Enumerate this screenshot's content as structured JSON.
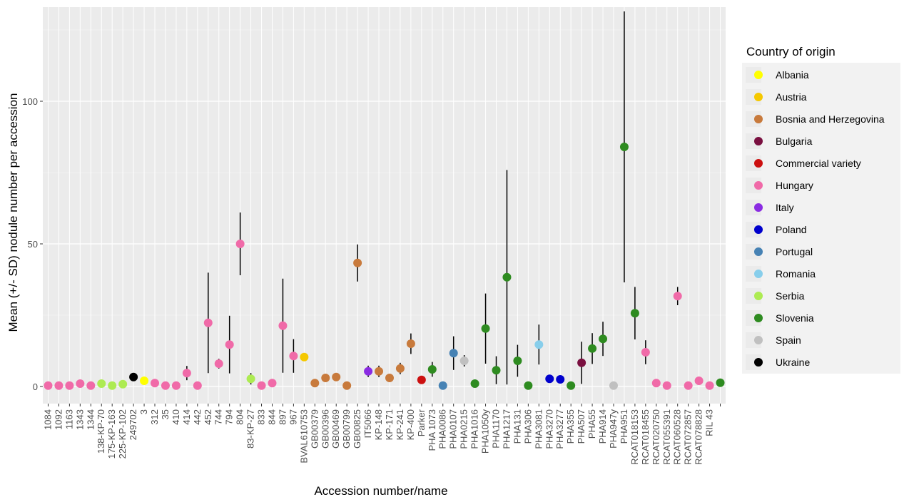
{
  "chart_data": {
    "type": "scatter",
    "title": "",
    "xlabel": "Accession number/name",
    "ylabel": "Mean (+/- SD) nodule number per accession",
    "ylim": [
      -6,
      133
    ],
    "yticks": [
      0,
      50,
      100
    ],
    "grid": true,
    "legend_position": "right",
    "legend_title": "Country of origin",
    "legend": [
      {
        "name": "Albania",
        "color": "#ffff00"
      },
      {
        "name": "Austria",
        "color": "#f5c800"
      },
      {
        "name": "Bosnia and Herzegovina",
        "color": "#c87a3c"
      },
      {
        "name": "Bulgaria",
        "color": "#7a1040"
      },
      {
        "name": "Commercial variety",
        "color": "#cc1010"
      },
      {
        "name": "Hungary",
        "color": "#f06aa8"
      },
      {
        "name": "Italy",
        "color": "#8a2be2"
      },
      {
        "name": "Poland",
        "color": "#0000cd"
      },
      {
        "name": "Portugal",
        "color": "#4682b4"
      },
      {
        "name": "Romania",
        "color": "#87ceeb"
      },
      {
        "name": "Serbia",
        "color": "#adeb52"
      },
      {
        "name": "Slovenia",
        "color": "#2e8b20"
      },
      {
        "name": "Spain",
        "color": "#c0c0c0"
      },
      {
        "name": "Ukraine",
        "color": "#000000"
      }
    ],
    "points": [
      {
        "x": "1084",
        "y": 0.3,
        "sd": 0.3,
        "country": "Hungary"
      },
      {
        "x": "1092",
        "y": 0.3,
        "sd": 0.3,
        "country": "Hungary"
      },
      {
        "x": "1163",
        "y": 0.3,
        "sd": 0.3,
        "country": "Hungary"
      },
      {
        "x": "1343",
        "y": 1.0,
        "sd": 1.2,
        "country": "Hungary"
      },
      {
        "x": "1344",
        "y": 0.3,
        "sd": 0.3,
        "country": "Hungary"
      },
      {
        "x": "138-KP-70",
        "y": 1.0,
        "sd": 1.0,
        "country": "Serbia"
      },
      {
        "x": "175-KP-163",
        "y": 0.3,
        "sd": 0.3,
        "country": "Serbia"
      },
      {
        "x": "225-KP-102",
        "y": 0.8,
        "sd": 0.8,
        "country": "Serbia"
      },
      {
        "x": "249702",
        "y": 3.3,
        "sd": 0.3,
        "country": "Ukraine"
      },
      {
        "x": "3",
        "y": 2.0,
        "sd": 1.2,
        "country": "Albania"
      },
      {
        "x": "312",
        "y": 1.2,
        "sd": 1.2,
        "country": "Hungary"
      },
      {
        "x": "35",
        "y": 0.3,
        "sd": 0.3,
        "country": "Hungary"
      },
      {
        "x": "410",
        "y": 0.3,
        "sd": 0.3,
        "country": "Hungary"
      },
      {
        "x": "414",
        "y": 4.7,
        "sd": 2.5,
        "country": "Hungary"
      },
      {
        "x": "442",
        "y": 0.3,
        "sd": 0.3,
        "country": "Hungary"
      },
      {
        "x": "452",
        "y": 22.3,
        "sd": 17.6,
        "country": "Hungary"
      },
      {
        "x": "744",
        "y": 8.0,
        "sd": 1.7,
        "country": "Hungary"
      },
      {
        "x": "794",
        "y": 14.7,
        "sd": 10.1,
        "country": "Hungary"
      },
      {
        "x": "804",
        "y": 50.0,
        "sd": 11.0,
        "country": "Hungary"
      },
      {
        "x": "83-KP-27",
        "y": 2.7,
        "sd": 2.0,
        "country": "Serbia"
      },
      {
        "x": "833",
        "y": 0.3,
        "sd": 0.3,
        "country": "Hungary"
      },
      {
        "x": "844",
        "y": 1.2,
        "sd": 1.2,
        "country": "Hungary"
      },
      {
        "x": "897",
        "y": 21.3,
        "sd": 16.5,
        "country": "Hungary"
      },
      {
        "x": "967",
        "y": 10.7,
        "sd": 5.9,
        "country": "Hungary"
      },
      {
        "x": "BVAL610753",
        "y": 10.3,
        "sd": 0.3,
        "country": "Austria"
      },
      {
        "x": "GB00379",
        "y": 1.2,
        "sd": 1.2,
        "country": "Bosnia and Herzegovina"
      },
      {
        "x": "GB00396",
        "y": 3.0,
        "sd": 1.2,
        "country": "Bosnia and Herzegovina"
      },
      {
        "x": "GB00469",
        "y": 3.3,
        "sd": 1.2,
        "country": "Bosnia and Herzegovina"
      },
      {
        "x": "GB00799",
        "y": 0.3,
        "sd": 0.3,
        "country": "Bosnia and Herzegovina"
      },
      {
        "x": "GB00825",
        "y": 43.3,
        "sd": 6.5,
        "country": "Bosnia and Herzegovina"
      },
      {
        "x": "IT5066",
        "y": 5.3,
        "sd": 2.0,
        "country": "Italy"
      },
      {
        "x": "KP-148",
        "y": 5.3,
        "sd": 2.0,
        "country": "Bosnia and Herzegovina"
      },
      {
        "x": "KP-171",
        "y": 3.0,
        "sd": 1.2,
        "country": "Bosnia and Herzegovina"
      },
      {
        "x": "KP-241",
        "y": 6.3,
        "sd": 2.0,
        "country": "Bosnia and Herzegovina"
      },
      {
        "x": "KP-400",
        "y": 15.0,
        "sd": 3.6,
        "country": "Bosnia and Herzegovina"
      },
      {
        "x": "Parker",
        "y": 2.3,
        "sd": 0.3,
        "country": "Commercial variety"
      },
      {
        "x": "PHA 1073",
        "y": 6.0,
        "sd": 2.6,
        "country": "Slovenia"
      },
      {
        "x": "PHA0086",
        "y": 0.3,
        "sd": 0.3,
        "country": "Portugal"
      },
      {
        "x": "PHA0107",
        "y": 11.7,
        "sd": 5.9,
        "country": "Portugal"
      },
      {
        "x": "PHA0215",
        "y": 9.0,
        "sd": 2.0,
        "country": "Spain"
      },
      {
        "x": "PHA1016",
        "y": 1.0,
        "sd": 1.0,
        "country": "Slovenia"
      },
      {
        "x": "PHA1050y",
        "y": 20.3,
        "sd": 12.3,
        "country": "Slovenia"
      },
      {
        "x": "PHA1170",
        "y": 5.7,
        "sd": 4.9,
        "country": "Slovenia"
      },
      {
        "x": "PHA1217",
        "y": 38.3,
        "sd": 37.6,
        "country": "Slovenia"
      },
      {
        "x": "PHA131",
        "y": 9.0,
        "sd": 5.6,
        "country": "Slovenia"
      },
      {
        "x": "PHA306",
        "y": 0.3,
        "sd": 0.3,
        "country": "Slovenia"
      },
      {
        "x": "PHA3081",
        "y": 14.7,
        "sd": 7.0,
        "country": "Romania"
      },
      {
        "x": "PHA3270",
        "y": 2.7,
        "sd": 0.3,
        "country": "Poland"
      },
      {
        "x": "PHA3277",
        "y": 2.5,
        "sd": 0.3,
        "country": "Poland"
      },
      {
        "x": "PHA355",
        "y": 0.3,
        "sd": 0.3,
        "country": "Slovenia"
      },
      {
        "x": "PHA507",
        "y": 8.3,
        "sd": 7.4,
        "country": "Bulgaria"
      },
      {
        "x": "PHA55",
        "y": 13.3,
        "sd": 5.4,
        "country": "Slovenia"
      },
      {
        "x": "PHA914",
        "y": 16.7,
        "sd": 6.0,
        "country": "Slovenia"
      },
      {
        "x": "PHA947y",
        "y": 0.3,
        "sd": 0.3,
        "country": "Spain"
      },
      {
        "x": "PHA951",
        "y": 84.0,
        "sd": 47.5,
        "country": "Slovenia"
      },
      {
        "x": "RCAT018153",
        "y": 25.7,
        "sd": 9.2,
        "country": "Slovenia"
      },
      {
        "x": "RCAT018455",
        "y": 12.0,
        "sd": 4.2,
        "country": "Hungary"
      },
      {
        "x": "RCAT020750",
        "y": 1.2,
        "sd": 1.2,
        "country": "Hungary"
      },
      {
        "x": "RCAT055391",
        "y": 0.3,
        "sd": 0.3,
        "country": "Hungary"
      },
      {
        "x": "RCAT060528",
        "y": 31.7,
        "sd": 3.2,
        "country": "Hungary"
      },
      {
        "x": "RCAT072857",
        "y": 0.3,
        "sd": 0.3,
        "country": "Hungary"
      },
      {
        "x": "RCAT078828",
        "y": 2.0,
        "sd": 1.2,
        "country": "Hungary"
      },
      {
        "x": "RIL 43",
        "y": 0.3,
        "sd": 0.3,
        "country": "Hungary"
      },
      {
        "x": "",
        "y": 1.3,
        "sd": 1.0,
        "country": "Slovenia"
      }
    ]
  }
}
